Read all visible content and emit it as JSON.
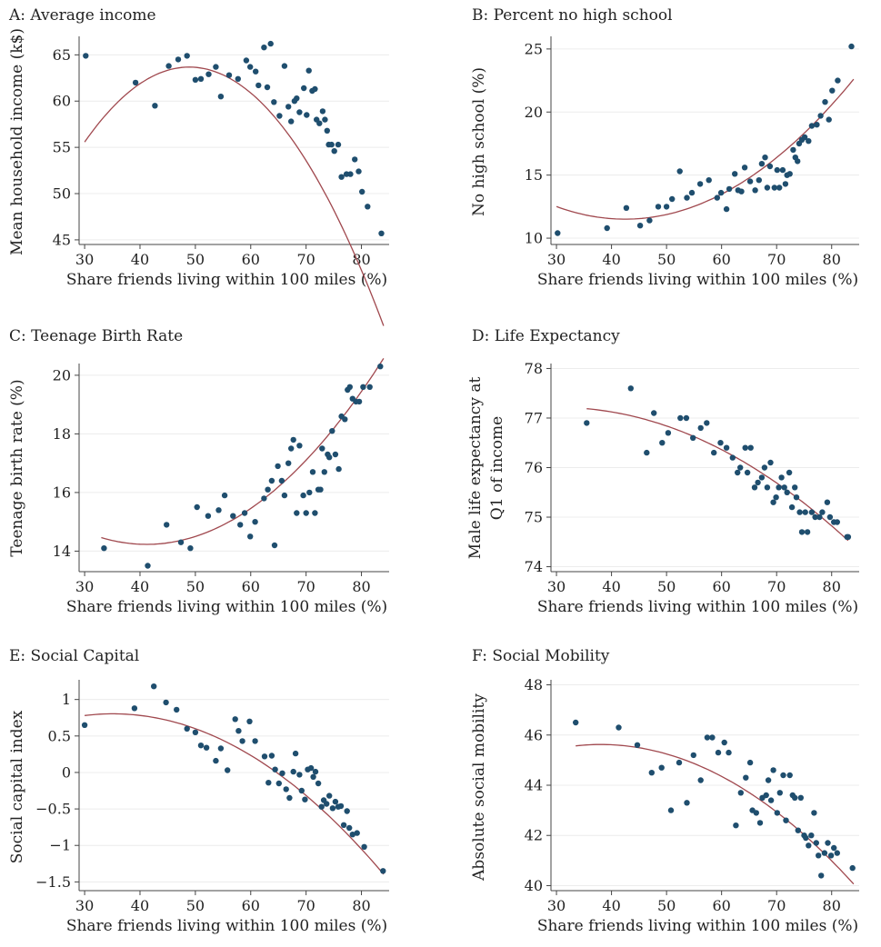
{
  "colors": {
    "point": "#1f4e6e",
    "fit": "#a0484e",
    "grid": "#ececec",
    "text": "#222222"
  },
  "chart_data": [
    {
      "id": "A",
      "type": "scatter",
      "title": "A: Average income",
      "xlabel": "Share friends living within 100 miles (%)",
      "ylabel": "Mean household income (k$)",
      "xlim": [
        29,
        85
      ],
      "ylim": [
        44.5,
        67
      ],
      "xticks": [
        30,
        40,
        50,
        60,
        70,
        80
      ],
      "yticks": [
        45,
        50,
        55,
        60,
        65
      ],
      "xtick_labels": [
        "30",
        "40",
        "50",
        "60",
        "70",
        "80"
      ],
      "ytick_labels": [
        "45",
        "50",
        "55",
        "60",
        "65"
      ],
      "grid": true,
      "fit": {
        "type": "quadratic",
        "x_range": [
          30,
          84
        ],
        "coef": [
          9.4,
          2.22,
          -0.0227
        ]
      },
      "x": [
        30.2,
        39.2,
        42.7,
        45.2,
        46.9,
        48.5,
        50.0,
        51.0,
        52.4,
        53.7,
        54.6,
        56.1,
        57.7,
        59.2,
        59.9,
        60.9,
        61.4,
        62.4,
        63.0,
        63.6,
        64.2,
        65.2,
        66.1,
        66.8,
        67.3,
        67.9,
        68.3,
        68.8,
        69.6,
        70.1,
        70.5,
        71.1,
        71.6,
        71.9,
        72.4,
        73.0,
        73.4,
        73.8,
        74.1,
        74.6,
        75.1,
        75.8,
        76.4,
        77.3,
        78.0,
        78.8,
        79.5,
        80.1,
        81.1,
        83.6
      ],
      "y": [
        64.9,
        62.0,
        59.5,
        63.8,
        64.5,
        64.9,
        62.3,
        62.4,
        62.9,
        63.7,
        60.5,
        62.8,
        62.4,
        64.4,
        63.7,
        63.2,
        61.7,
        65.8,
        61.5,
        66.2,
        59.9,
        58.4,
        63.8,
        59.4,
        57.8,
        60.0,
        60.3,
        58.8,
        61.4,
        58.5,
        63.3,
        61.1,
        61.3,
        58.0,
        57.6,
        58.9,
        58.0,
        56.8,
        55.3,
        55.3,
        54.6,
        55.3,
        51.8,
        52.1,
        52.1,
        53.7,
        52.4,
        50.2,
        48.6,
        45.7
      ]
    },
    {
      "id": "B",
      "type": "scatter",
      "title": "B: Percent no high school",
      "xlabel": "Share friends living within 100 miles (%)",
      "ylabel": "No high school (%)",
      "xlim": [
        29,
        85
      ],
      "ylim": [
        9.5,
        26
      ],
      "xticks": [
        30,
        40,
        50,
        60,
        70,
        80
      ],
      "yticks": [
        10,
        15,
        20,
        25
      ],
      "xtick_labels": [
        "30",
        "40",
        "50",
        "60",
        "70",
        "80"
      ],
      "ytick_labels": [
        "10",
        "15",
        "20",
        "25"
      ],
      "grid": true,
      "fit": {
        "type": "quadratic",
        "x_range": [
          30,
          84
        ],
        "coef": [
          23.1,
          -0.546,
          0.00643
        ]
      },
      "x": [
        30.2,
        39.2,
        42.7,
        45.2,
        46.9,
        48.5,
        50.0,
        51.0,
        52.4,
        53.7,
        54.6,
        56.1,
        57.7,
        59.2,
        59.9,
        60.9,
        61.4,
        62.4,
        63.0,
        63.6,
        64.2,
        65.2,
        66.1,
        66.8,
        67.3,
        67.9,
        68.3,
        68.8,
        69.6,
        70.1,
        70.5,
        71.1,
        71.6,
        71.9,
        72.4,
        73.0,
        73.4,
        73.8,
        74.1,
        74.6,
        75.1,
        75.8,
        76.4,
        77.3,
        78.0,
        78.8,
        79.5,
        80.1,
        81.1,
        83.6
      ],
      "y": [
        10.4,
        10.8,
        12.4,
        11.0,
        11.4,
        12.5,
        12.5,
        13.1,
        15.3,
        13.2,
        13.6,
        14.3,
        14.6,
        13.2,
        13.6,
        12.3,
        13.9,
        15.1,
        13.8,
        13.7,
        15.6,
        14.5,
        13.8,
        14.6,
        15.9,
        16.4,
        14.0,
        15.7,
        14.0,
        15.4,
        14.0,
        15.4,
        14.3,
        15.0,
        15.1,
        17.0,
        16.4,
        16.1,
        17.5,
        17.8,
        18.0,
        17.7,
        18.9,
        19.0,
        19.7,
        20.8,
        19.4,
        21.7,
        22.5,
        25.2
      ]
    },
    {
      "id": "C",
      "type": "scatter",
      "title": "C: Teenage Birth Rate",
      "xlabel": "Share friends living within 100 miles (%)",
      "ylabel": "Teenage birth rate (%)",
      "xlim": [
        29,
        85
      ],
      "ylim": [
        13.3,
        20.4
      ],
      "xticks": [
        30,
        40,
        50,
        60,
        70,
        80
      ],
      "yticks": [
        14,
        16,
        18,
        20
      ],
      "xtick_labels": [
        "30",
        "40",
        "50",
        "60",
        "70",
        "80"
      ],
      "ytick_labels": [
        "14",
        "16",
        "18",
        "20"
      ],
      "grid": true,
      "fit": {
        "type": "quadratic",
        "x_range": [
          33,
          84
        ],
        "coef": [
          20.1,
          -0.285,
          0.00346
        ]
      },
      "x": [
        33.5,
        41.4,
        44.8,
        47.4,
        49.1,
        50.3,
        52.3,
        54.2,
        55.3,
        56.8,
        58.1,
        58.9,
        59.9,
        60.8,
        62.4,
        63.1,
        63.8,
        64.3,
        64.9,
        65.6,
        66.1,
        66.8,
        67.3,
        67.7,
        68.3,
        68.8,
        69.5,
        70.0,
        70.6,
        71.2,
        71.6,
        72.2,
        72.6,
        72.9,
        73.3,
        73.9,
        74.2,
        74.7,
        75.3,
        75.9,
        76.4,
        77.0,
        77.5,
        77.9,
        78.4,
        79.0,
        79.6,
        80.3,
        81.5,
        83.4
      ],
      "y": [
        14.1,
        13.5,
        14.9,
        14.3,
        14.1,
        15.5,
        15.2,
        15.4,
        15.9,
        15.2,
        14.9,
        15.3,
        14.5,
        15.0,
        15.8,
        16.1,
        16.4,
        14.2,
        16.9,
        16.4,
        15.9,
        17.0,
        17.5,
        17.8,
        15.3,
        17.6,
        15.9,
        15.3,
        16.0,
        16.7,
        15.3,
        16.1,
        16.1,
        17.5,
        16.7,
        17.3,
        17.2,
        18.1,
        17.3,
        16.8,
        18.6,
        18.5,
        19.5,
        19.6,
        19.2,
        19.1,
        19.1,
        19.6,
        19.6,
        20.3
      ]
    },
    {
      "id": "D",
      "type": "scatter",
      "title": "D: Life Expectancy",
      "xlabel": "Share friends living within 100 miles (%)",
      "ylabel": "Male life expectancy at Q1 of income",
      "xlim": [
        29,
        85
      ],
      "ylim": [
        73.9,
        78.1
      ],
      "xticks": [
        30,
        40,
        50,
        60,
        70,
        80
      ],
      "yticks": [
        74,
        75,
        76,
        77,
        78
      ],
      "xtick_labels": [
        "30",
        "40",
        "50",
        "60",
        "70",
        "80"
      ],
      "ytick_labels": [
        "74",
        "75",
        "76",
        "77",
        "78"
      ],
      "grid": true,
      "fit": {
        "type": "quadratic",
        "x_range": [
          35.5,
          83
        ],
        "coef": [
          76.32,
          0.0589,
          -0.00097
        ]
      },
      "x": [
        35.5,
        43.5,
        46.4,
        47.7,
        49.2,
        50.3,
        52.5,
        53.6,
        54.8,
        56.2,
        57.3,
        58.6,
        59.8,
        60.9,
        62.0,
        62.9,
        63.4,
        64.3,
        64.7,
        65.3,
        66.0,
        66.6,
        67.3,
        67.8,
        68.3,
        68.9,
        69.4,
        69.9,
        70.4,
        70.9,
        71.4,
        71.9,
        72.3,
        72.8,
        73.3,
        73.6,
        74.2,
        74.6,
        75.2,
        75.6,
        76.4,
        77.0,
        77.8,
        78.3,
        79.2,
        79.7,
        80.4,
        81.0,
        82.8,
        83.0
      ],
      "y": [
        76.9,
        77.6,
        76.3,
        77.1,
        76.5,
        76.7,
        77.0,
        77.0,
        76.6,
        76.8,
        76.9,
        76.3,
        76.5,
        76.4,
        76.2,
        75.9,
        76.0,
        76.4,
        75.9,
        76.4,
        75.6,
        75.7,
        75.8,
        76.0,
        75.6,
        76.1,
        75.3,
        75.4,
        75.6,
        75.8,
        75.6,
        75.5,
        75.9,
        75.2,
        75.6,
        75.4,
        75.1,
        74.7,
        75.1,
        74.7,
        75.1,
        75.0,
        75.0,
        75.1,
        75.3,
        75.0,
        74.9,
        74.9,
        74.6,
        74.6
      ]
    },
    {
      "id": "E",
      "type": "scatter",
      "title": "E: Social Capital",
      "xlabel": "Share friends living within 100 miles (%)",
      "ylabel": "Social capital index",
      "xlim": [
        29,
        85
      ],
      "ylim": [
        -1.62,
        1.27
      ],
      "xticks": [
        30,
        40,
        50,
        60,
        70,
        80
      ],
      "yticks": [
        -1.5,
        -1,
        -0.5,
        0,
        0.5,
        1
      ],
      "xtick_labels": [
        "30",
        "40",
        "50",
        "60",
        "70",
        "80"
      ],
      "ytick_labels": [
        "−1.5",
        "−1",
        "−0.5",
        "0",
        "0.5",
        "1"
      ],
      "grid": true,
      "fit": {
        "type": "quadratic",
        "x_range": [
          30,
          84
        ],
        "coef": [
          -0.33,
          0.0646,
          -0.00092
        ]
      },
      "x": [
        30.0,
        39.0,
        42.5,
        44.7,
        46.6,
        48.5,
        50.0,
        51.0,
        52.0,
        53.7,
        54.6,
        55.8,
        57.2,
        57.8,
        58.5,
        59.8,
        60.8,
        62.5,
        63.2,
        63.8,
        64.4,
        65.1,
        65.7,
        66.4,
        67.0,
        67.7,
        68.1,
        68.8,
        69.2,
        69.8,
        70.3,
        70.9,
        71.3,
        71.7,
        72.2,
        72.8,
        73.2,
        73.7,
        74.2,
        74.8,
        75.3,
        75.8,
        76.3,
        76.8,
        77.4,
        77.8,
        78.4,
        79.2,
        80.5,
        83.9
      ],
      "y": [
        0.65,
        0.88,
        1.18,
        0.96,
        0.86,
        0.6,
        0.55,
        0.37,
        0.34,
        0.16,
        0.33,
        0.03,
        0.73,
        0.57,
        0.43,
        0.7,
        0.43,
        0.22,
        -0.14,
        0.23,
        0.04,
        -0.15,
        -0.01,
        -0.23,
        -0.35,
        0.01,
        0.26,
        -0.03,
        -0.25,
        -0.37,
        0.04,
        0.06,
        -0.06,
        0.01,
        -0.15,
        -0.47,
        -0.38,
        -0.43,
        -0.32,
        -0.49,
        -0.4,
        -0.47,
        -0.46,
        -0.72,
        -0.53,
        -0.76,
        -0.85,
        -0.83,
        -1.02,
        -1.35
      ]
    },
    {
      "id": "F",
      "type": "scatter",
      "title": "F: Social Mobility",
      "xlabel": "Share friends living within 100 miles (%)",
      "ylabel": "Absolute social mobility",
      "xlim": [
        29,
        85
      ],
      "ylim": [
        39.8,
        48.2
      ],
      "xticks": [
        30,
        40,
        50,
        60,
        70,
        80
      ],
      "yticks": [
        40,
        42,
        44,
        46,
        48
      ],
      "xtick_labels": [
        "30",
        "40",
        "50",
        "60",
        "70",
        "80"
      ],
      "ytick_labels": [
        "40",
        "42",
        "44",
        "46",
        "48"
      ],
      "grid": true,
      "fit": {
        "type": "quadratic",
        "x_range": [
          33.5,
          84
        ],
        "coef": [
          41.82,
          0.2,
          -0.00263
        ]
      },
      "x": [
        33.5,
        41.3,
        44.7,
        47.3,
        49.1,
        50.8,
        52.3,
        53.7,
        54.9,
        56.2,
        57.4,
        58.3,
        59.4,
        60.5,
        61.3,
        62.6,
        63.5,
        64.4,
        65.2,
        65.6,
        66.3,
        67.0,
        67.4,
        68.1,
        68.5,
        69.0,
        69.4,
        70.1,
        70.6,
        71.2,
        71.7,
        72.4,
        72.9,
        73.3,
        73.9,
        74.4,
        75.0,
        75.3,
        75.8,
        76.3,
        76.8,
        77.2,
        77.6,
        78.1,
        78.7,
        79.3,
        79.9,
        80.4,
        81.0,
        83.8
      ],
      "y": [
        46.5,
        46.3,
        45.6,
        44.5,
        44.7,
        43.0,
        44.9,
        43.3,
        45.2,
        44.2,
        45.9,
        45.9,
        45.3,
        45.7,
        45.3,
        42.4,
        43.7,
        44.3,
        44.9,
        43.0,
        42.9,
        42.5,
        43.5,
        43.6,
        44.2,
        43.4,
        44.6,
        42.9,
        43.7,
        44.4,
        42.6,
        44.4,
        43.6,
        43.5,
        42.2,
        43.5,
        42.0,
        41.9,
        41.6,
        42.0,
        42.9,
        41.7,
        41.2,
        40.4,
        41.3,
        41.7,
        41.2,
        41.5,
        41.3,
        40.7
      ]
    }
  ]
}
